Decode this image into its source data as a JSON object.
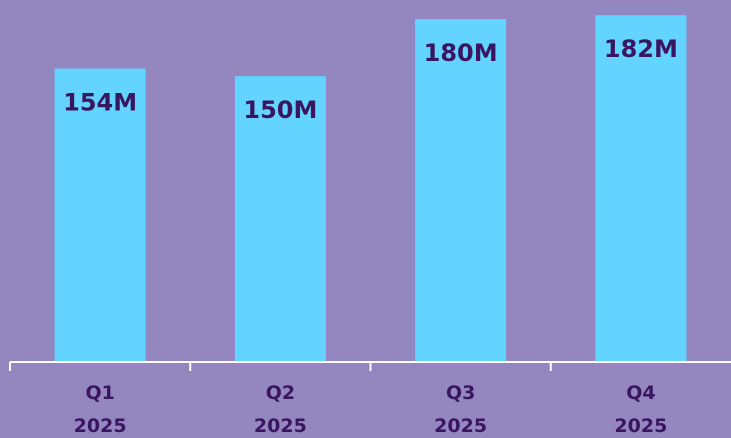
{
  "chart_data": {
    "type": "bar",
    "title": "",
    "xlabel": "",
    "ylabel": "",
    "categories": [
      "Q1 2025",
      "Q2 2025",
      "Q3 2025",
      "Q4 2025"
    ],
    "category_lines": [
      [
        "Q1",
        "2025"
      ],
      [
        "Q2",
        "2025"
      ],
      [
        "Q3",
        "2025"
      ],
      [
        "Q4",
        "2025"
      ]
    ],
    "values": [
      154,
      150,
      180,
      182
    ],
    "data_labels": [
      "154M",
      "150M",
      "180M",
      "182M"
    ],
    "unit": "M",
    "ylim": [
      0,
      190
    ],
    "grid": false,
    "legend": "none"
  },
  "colors": {
    "background": "#9486bf",
    "bar": "#63d4ff",
    "text": "#3a1660",
    "axis": "#ffffff"
  }
}
